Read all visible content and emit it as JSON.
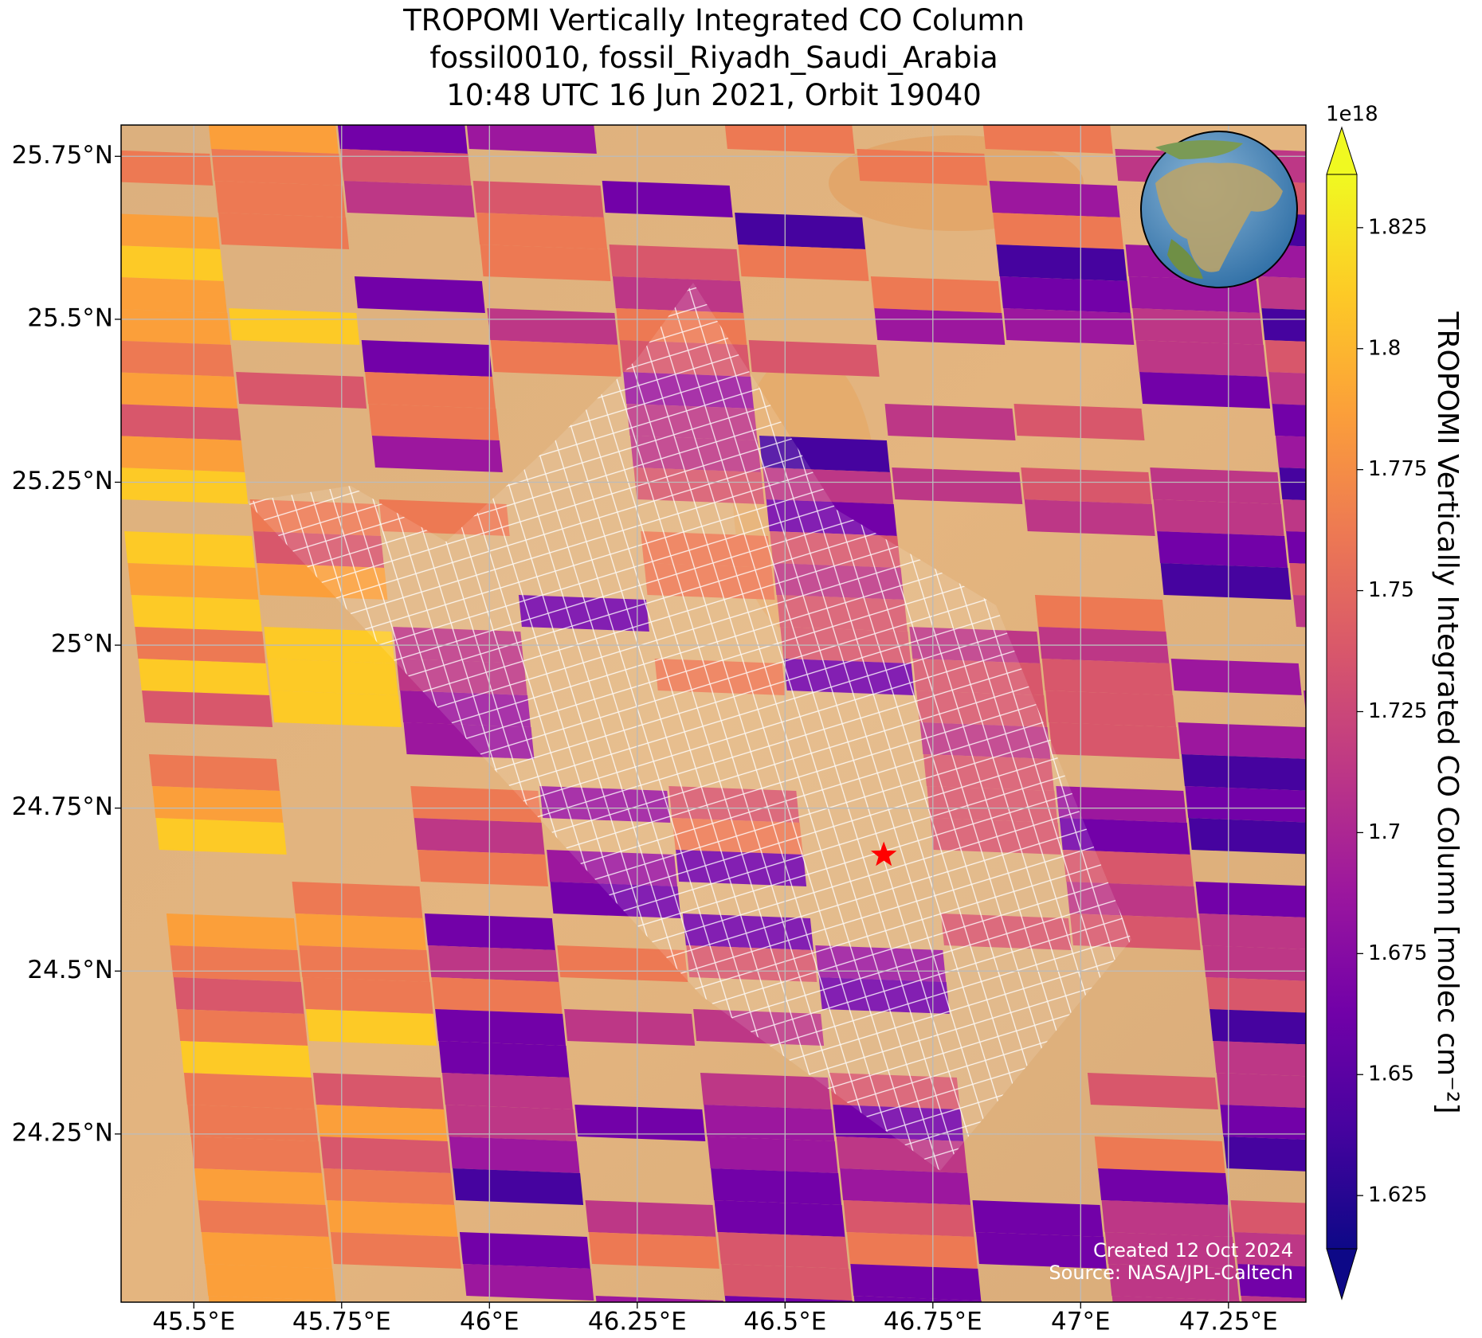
{
  "map": {
    "type": "map",
    "title": [
      "TROPOMI Vertically Integrated CO Column",
      "fossil0010, fossil_Riyadh_Saudi_Arabia",
      "10:48 UTC 16 Jun 2021, Orbit 19040"
    ],
    "xlim": [
      45.377,
      47.381
    ],
    "ylim": [
      23.992,
      25.798
    ],
    "xticks": [
      {
        "value": 45.5,
        "label": "45.5°E"
      },
      {
        "value": 45.75,
        "label": "45.75°E"
      },
      {
        "value": 46,
        "label": "46°E"
      },
      {
        "value": 46.25,
        "label": "46.25°E"
      },
      {
        "value": 46.5,
        "label": "46.5°E"
      },
      {
        "value": 46.75,
        "label": "46.75°E"
      },
      {
        "value": 47,
        "label": "47°E"
      },
      {
        "value": 47.25,
        "label": "47.25°E"
      }
    ],
    "yticks": [
      {
        "value": 25.75,
        "label": "25.75°N"
      },
      {
        "value": 25.5,
        "label": "25.5°N"
      },
      {
        "value": 25.25,
        "label": "25.25°N"
      },
      {
        "value": 25,
        "label": "25°N"
      },
      {
        "value": 24.75,
        "label": "24.75°N"
      },
      {
        "value": 24.5,
        "label": "24.5°N"
      },
      {
        "value": 24.25,
        "label": "24.25°N"
      }
    ],
    "grid": true,
    "site": {
      "lon": 46.667,
      "lat": 24.678,
      "color": "#ff0000"
    },
    "colorbar": {
      "label": "TROPOMI Vertically Integrated CO Column [molec cm⁻²]",
      "offset": "1e18",
      "colormap": "plasma",
      "clim": [
        1.614,
        1.836
      ],
      "ticks": [
        1.625,
        1.65,
        1.675,
        1.7,
        1.725,
        1.75,
        1.775,
        1.8,
        1.825
      ],
      "extend": "both"
    },
    "annotations": [
      "Created 12 Oct 2024",
      "Source: NASA/JPL-Caltech"
    ]
  }
}
